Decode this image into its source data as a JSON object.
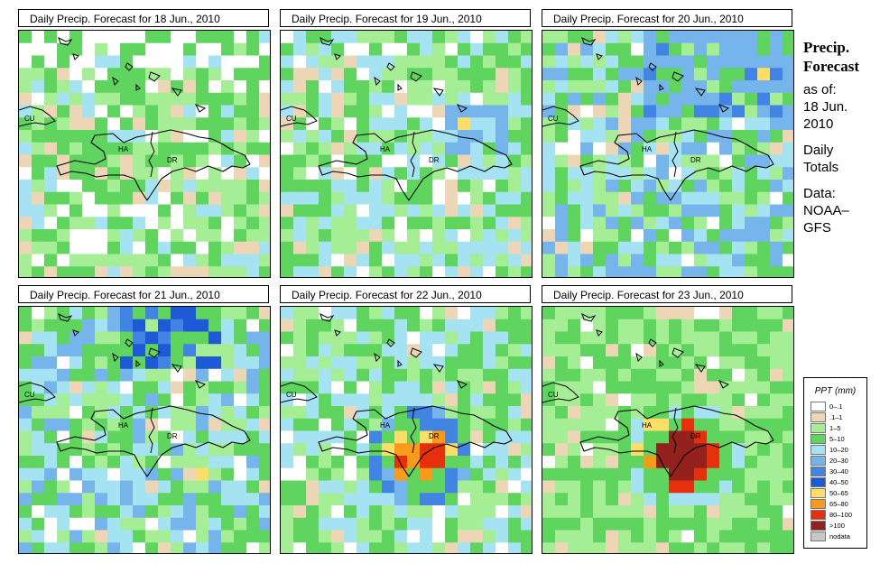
{
  "panels": [
    {
      "title": "Daily Precip. Forecast for  18 Jun., 2010",
      "level": 0
    },
    {
      "title": "Daily Precip. Forecast for  19 Jun., 2010",
      "level": 1
    },
    {
      "title": "Daily Precip. Forecast for  20 Jun., 2010",
      "level": 2
    },
    {
      "title": "Daily Precip. Forecast for  21 Jun., 2010",
      "level": 3
    },
    {
      "title": "Daily Precip. Forecast for  22 Jun., 2010",
      "level": 4
    },
    {
      "title": "Daily Precip. Forecast for  23 Jun., 2010",
      "level": 5
    }
  ],
  "map_labels": {
    "cu": "CU",
    "ha": "HA",
    "dr": "DR"
  },
  "side": {
    "title_line1": "Precip.",
    "title_line2": "Forecast",
    "asof": "as of:",
    "date_line1": "18 Jun.",
    "date_line2": "2010",
    "daily": "Daily",
    "totals": "Totals",
    "data": "Data:",
    "source_line1": "NOAA–",
    "source_line2": "GFS"
  },
  "legend": {
    "title": "PPT (mm)",
    "items": [
      {
        "label": "0–.1",
        "color": "#ffffff"
      },
      {
        "label": ".1–1",
        "color": "#ecd6b6"
      },
      {
        "label": "1–5",
        "color": "#a6ee95"
      },
      {
        "label": "5–10",
        "color": "#5fd45f"
      },
      {
        "label": "10–20",
        "color": "#a6e3f2"
      },
      {
        "label": "20–30",
        "color": "#76b4ec"
      },
      {
        "label": "30–40",
        "color": "#4184e4"
      },
      {
        "label": "40–50",
        "color": "#1f5ad6"
      },
      {
        "label": "50–65",
        "color": "#fcde68"
      },
      {
        "label": "65–80",
        "color": "#f99a1a"
      },
      {
        "label": "80–100",
        "color": "#e62f0c"
      },
      {
        "label": ">100",
        "color": "#93221c"
      },
      {
        "label": "nodata",
        "color": "#c8c8c8"
      }
    ]
  }
}
